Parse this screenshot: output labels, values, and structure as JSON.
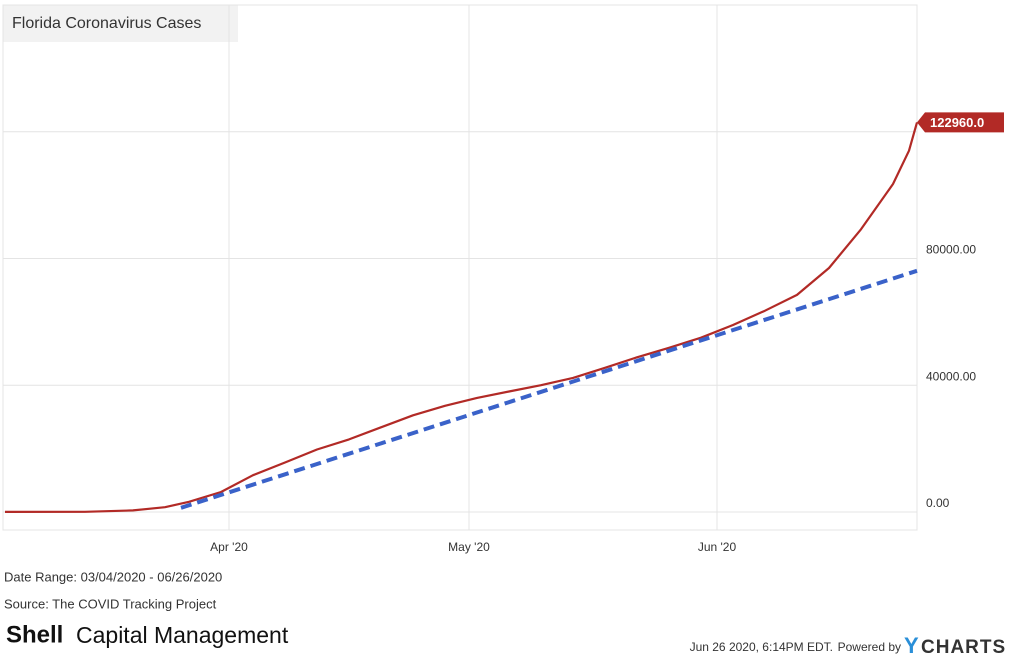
{
  "chart_data": {
    "type": "line",
    "title": "Florida Coronavirus Cases",
    "x": [
      "2020-03-04",
      "2020-03-14",
      "2020-03-20",
      "2020-03-24",
      "2020-03-27",
      "2020-03-31",
      "2020-04-04",
      "2020-04-08",
      "2020-04-12",
      "2020-04-16",
      "2020-04-20",
      "2020-04-24",
      "2020-04-28",
      "2020-05-02",
      "2020-05-06",
      "2020-05-10",
      "2020-05-14",
      "2020-05-18",
      "2020-05-22",
      "2020-05-26",
      "2020-05-30",
      "2020-06-03",
      "2020-06-07",
      "2020-06-11",
      "2020-06-15",
      "2020-06-19",
      "2020-06-23",
      "2020-06-25",
      "2020-06-26"
    ],
    "series": [
      {
        "color": "#b22a26",
        "values": [
          0,
          50,
          500,
          1500,
          3200,
          6300,
          11600,
          15600,
          19700,
          22900,
          26700,
          30500,
          33500,
          36000,
          38000,
          40000,
          42300,
          45500,
          48800,
          51800,
          55000,
          59000,
          63500,
          68500,
          77000,
          89200,
          103500,
          114000,
          122960
        ],
        "end_label": "122960.0"
      }
    ],
    "trendline": {
      "color": "#3a62c9",
      "x": [
        "2020-03-26",
        "2020-06-26"
      ],
      "values": [
        1300,
        76100
      ]
    },
    "xlim": [
      "2020-03-04",
      "2020-06-26"
    ],
    "xticks": [
      {
        "value": "2020-04-01",
        "label": "Apr '20"
      },
      {
        "value": "2020-05-01",
        "label": "May '20"
      },
      {
        "value": "2020-06-01",
        "label": "Jun '20"
      }
    ],
    "ylim": [
      -5700,
      160000
    ],
    "yticks": [
      {
        "value": 0,
        "label": "0.00"
      },
      {
        "value": 40000,
        "label": "40000.00"
      },
      {
        "value": 80000,
        "label": "80000.00"
      },
      {
        "value": 120000,
        "label": null
      }
    ],
    "grid": true,
    "date_range": "Date Range: 03/04/2020 - 06/26/2020",
    "source": "Source: The COVID Tracking Project",
    "brand_bold": "Shell",
    "brand_rest": "Capital Management",
    "timestamp": "Jun 26 2020, 6:14PM EDT.",
    "powered_by": "Powered by",
    "logo_y": "Y",
    "logo_rest": "CHARTS"
  }
}
